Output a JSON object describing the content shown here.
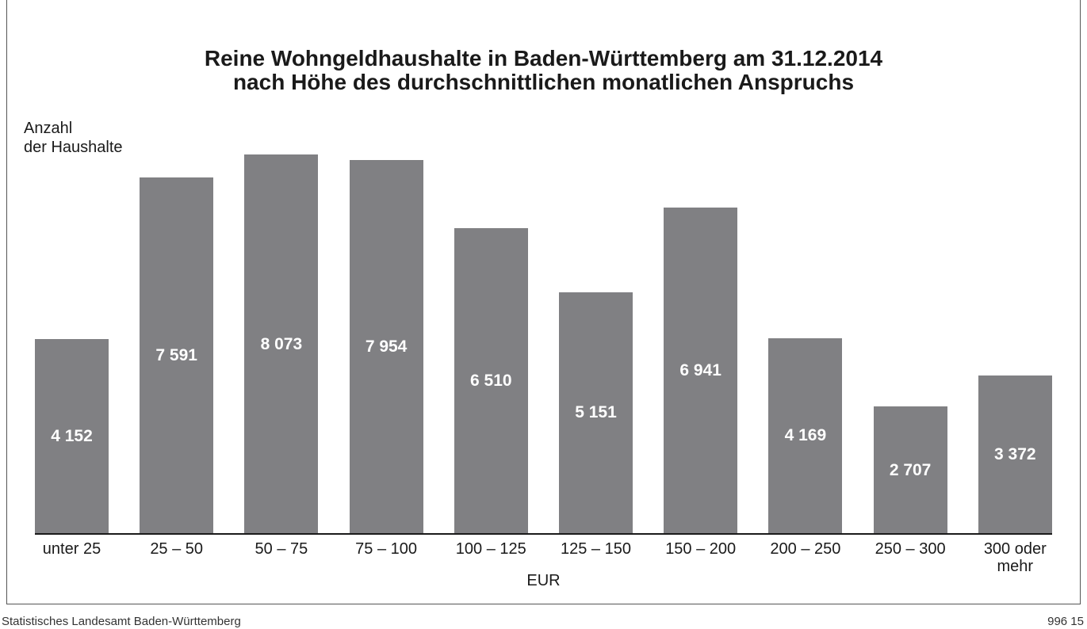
{
  "chart_data": {
    "type": "bar",
    "title": "Reine Wohngeldhaushalte in Baden-Württemberg am 31.12.2014",
    "subtitle": "nach Höhe des durchschnittlichen monatlichen  Anspruchs",
    "y_label": "Anzahl\nder Haushalte",
    "x_label": "EUR",
    "categories": [
      "unter 25",
      "25 – 50",
      "50 – 75",
      "75 – 100",
      "100 – 125",
      "125 – 150",
      "150 – 200",
      "200 – 250",
      "250 – 300",
      "300 oder\nmehr"
    ],
    "values": [
      4152,
      7591,
      8073,
      7954,
      6510,
      5151,
      6941,
      4169,
      2707,
      3372
    ],
    "value_labels": [
      "4 152",
      "7 591",
      "8 073",
      "7 954",
      "6 510",
      "5 151",
      "6 941",
      "4 169",
      "2 707",
      "3 372"
    ],
    "color": "#808083",
    "ylim": [
      0,
      8500
    ],
    "source": "Statistisches Landesamt Baden-Württemberg",
    "code": "996 15"
  }
}
